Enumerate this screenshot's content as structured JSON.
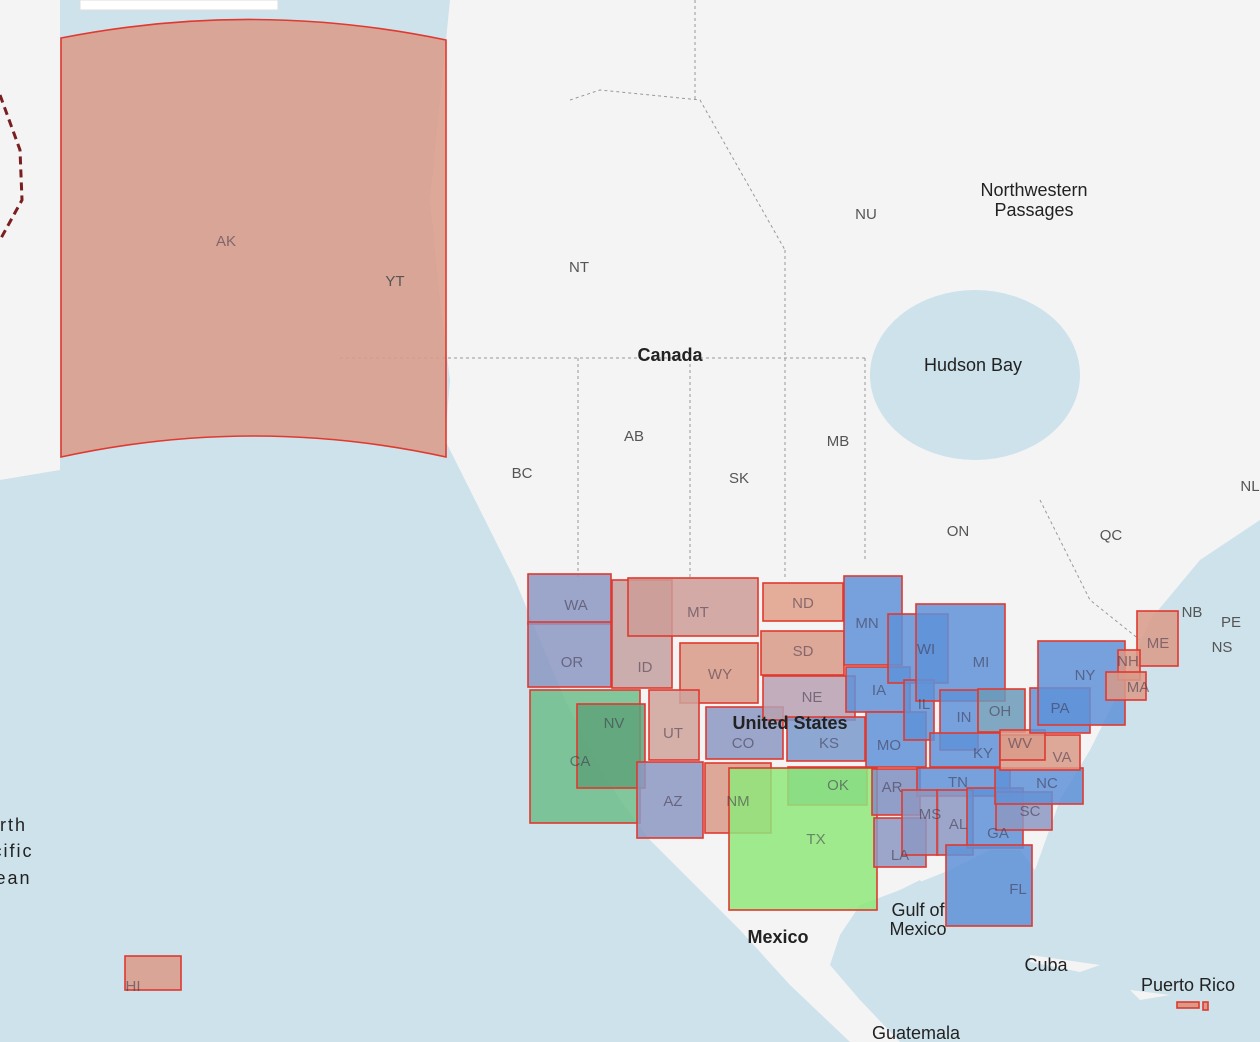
{
  "map": {
    "places": [
      "Northwestern",
      "Passages",
      "Hudson Bay",
      "Canada",
      "United States",
      "Mexico",
      "Gulf of",
      "Mexico",
      "Cuba",
      "Puerto Rico",
      "Guatemala",
      "North",
      "Pacific",
      "Ocean"
    ],
    "regions": [
      "NU",
      "NT",
      "YT",
      "AB",
      "BC",
      "SK",
      "MB",
      "ON",
      "QC",
      "NB",
      "PE",
      "NS",
      "NL"
    ],
    "states": [
      "AK",
      "WA",
      "OR",
      "CA",
      "NV",
      "ID",
      "MT",
      "WY",
      "UT",
      "CO",
      "AZ",
      "NM",
      "ND",
      "SD",
      "NE",
      "KS",
      "OK",
      "TX",
      "MN",
      "IA",
      "MO",
      "AR",
      "LA",
      "WI",
      "IL",
      "MI",
      "IN",
      "OH",
      "KY",
      "TN",
      "MS",
      "AL",
      "GA",
      "FL",
      "SC",
      "NC",
      "VA",
      "WV",
      "PA",
      "NY",
      "ME",
      "NH",
      "MA",
      "HI"
    ]
  }
}
